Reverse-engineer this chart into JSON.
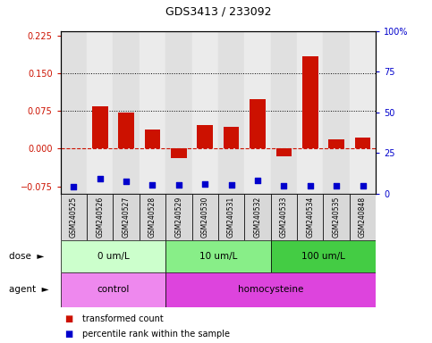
{
  "title": "GDS3413 / 233092",
  "samples": [
    "GSM240525",
    "GSM240526",
    "GSM240527",
    "GSM240528",
    "GSM240529",
    "GSM240530",
    "GSM240531",
    "GSM240532",
    "GSM240533",
    "GSM240534",
    "GSM240535",
    "GSM240848"
  ],
  "transformed_count": [
    0.0,
    0.085,
    0.072,
    0.038,
    -0.018,
    0.048,
    0.043,
    0.098,
    -0.015,
    0.185,
    0.018,
    0.022
  ],
  "percentile_rank_scaled": [
    -0.075,
    -0.06,
    -0.065,
    -0.073,
    -0.073,
    -0.07,
    -0.072,
    -0.063,
    -0.074,
    -0.074,
    -0.074,
    -0.074
  ],
  "bar_color": "#cc1100",
  "dot_color": "#0000cc",
  "ylim_left": [
    -0.09,
    0.235
  ],
  "ylim_right": [
    0,
    100
  ],
  "yticks_left": [
    -0.075,
    0.0,
    0.075,
    0.15,
    0.225
  ],
  "yticks_right": [
    0,
    25,
    50,
    75,
    100
  ],
  "hlines": [
    0.075,
    0.15
  ],
  "dose_groups": [
    {
      "label": "0 um/L",
      "start": 0,
      "end": 4,
      "color": "#ccffcc"
    },
    {
      "label": "10 um/L",
      "start": 4,
      "end": 8,
      "color": "#88ee88"
    },
    {
      "label": "100 um/L",
      "start": 8,
      "end": 12,
      "color": "#44cc44"
    }
  ],
  "agent_groups": [
    {
      "label": "control",
      "start": 0,
      "end": 4,
      "color": "#ee88ee"
    },
    {
      "label": "homocysteine",
      "start": 4,
      "end": 12,
      "color": "#dd44dd"
    }
  ],
  "legend_items": [
    {
      "label": "transformed count",
      "color": "#cc1100"
    },
    {
      "label": "percentile rank within the sample",
      "color": "#0000cc"
    }
  ],
  "background_color": "#ffffff",
  "plot_bg_color": "#ffffff",
  "sample_box_color": "#d8d8d8"
}
